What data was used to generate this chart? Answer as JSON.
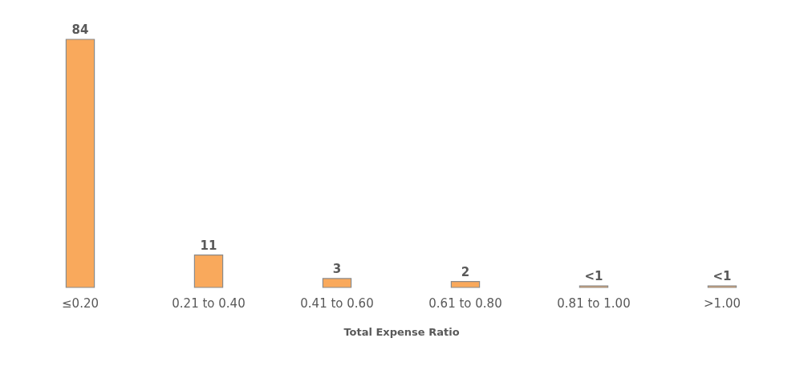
{
  "chart_data": {
    "type": "bar",
    "xlabel": "Total Expense Ratio",
    "categories": [
      "≤0.20",
      "0.21 to 0.40",
      "0.41 to 0.60",
      "0.61 to 0.80",
      "0.81 to 1.00",
      ">1.00"
    ],
    "values": [
      84,
      11,
      3,
      2,
      0.5,
      0.5
    ],
    "value_labels": [
      "84",
      "11",
      "3",
      "2",
      "<1",
      "<1"
    ],
    "color": "#f9a95c",
    "grid": false
  }
}
